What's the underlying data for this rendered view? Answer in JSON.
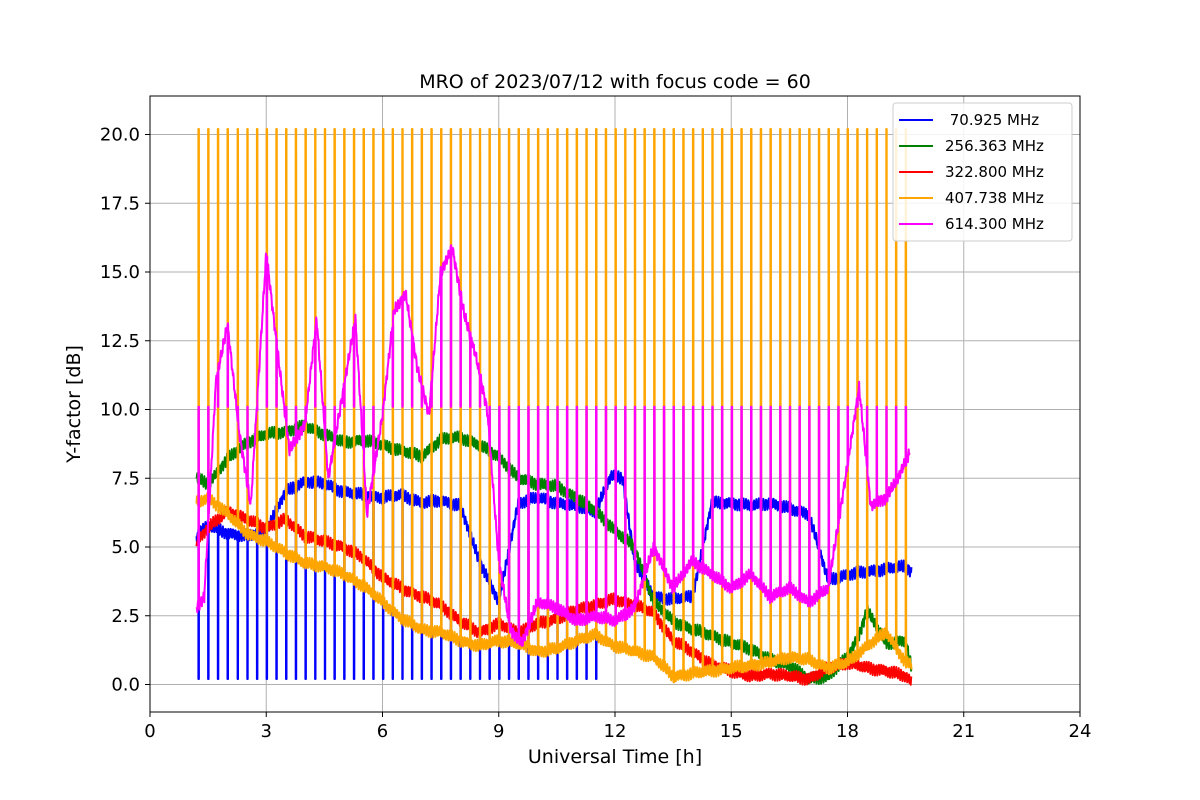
{
  "chart_data": {
    "type": "line",
    "title": "MRO of 2023/07/12 with focus code = 60",
    "xlabel": "Universal Time [h]",
    "ylabel": "Y-factor [dB]",
    "xlim": [
      0,
      24
    ],
    "ylim": [
      -1.0,
      21.4
    ],
    "xticks": [
      0,
      3,
      6,
      9,
      12,
      15,
      18,
      21,
      24
    ],
    "xtick_labels": [
      "0",
      "3",
      "6",
      "9",
      "12",
      "15",
      "18",
      "21",
      "24"
    ],
    "yticks": [
      0.0,
      2.5,
      5.0,
      7.5,
      10.0,
      12.5,
      15.0,
      17.5,
      20.0
    ],
    "ytick_labels": [
      "0.0",
      "2.5",
      "5.0",
      "7.5",
      "10.0",
      "12.5",
      "15.0",
      "17.5",
      "20.0"
    ],
    "grid": true,
    "legend_position": "top-right",
    "pulse_interval_h": 0.25,
    "series": [
      {
        "name": " 70.925 MHz",
        "color": "#0000ff",
        "pulse_value": 0.2,
        "pulse_range": [
          1.25,
          11.5
        ],
        "x": [
          1.2,
          1.5,
          2,
          2.5,
          3,
          3.5,
          4,
          4.5,
          5,
          5.5,
          6,
          6.5,
          7,
          7.5,
          8,
          8.5,
          9,
          9.5,
          10,
          10.5,
          11,
          11.5,
          11.9,
          12.2,
          12.5,
          13,
          13.5,
          14,
          14.5,
          15,
          15.5,
          16,
          16.5,
          17,
          17.5,
          18,
          18.5,
          19,
          19.5,
          19.65
        ],
        "values": [
          5.4,
          5.8,
          5.5,
          5.4,
          5.6,
          7.0,
          7.4,
          7.3,
          7.0,
          6.9,
          6.8,
          6.9,
          6.6,
          6.7,
          6.5,
          4.5,
          3.0,
          6.6,
          6.8,
          6.6,
          6.5,
          6.3,
          7.6,
          7.5,
          4.5,
          3.2,
          3.1,
          3.2,
          6.6,
          6.6,
          6.5,
          6.6,
          6.4,
          6.2,
          3.8,
          4.0,
          4.1,
          4.2,
          4.3,
          4.1
        ]
      },
      {
        "name": "256.363 MHz",
        "color": "#008000",
        "pulse_value": null,
        "pulse_range": null,
        "x": [
          1.2,
          1.5,
          2,
          2.5,
          3,
          3.5,
          4,
          4.5,
          5,
          5.5,
          6,
          6.5,
          7,
          7.5,
          8,
          8.5,
          9,
          9.5,
          10,
          10.5,
          11,
          11.5,
          12,
          12.5,
          13,
          13.5,
          14,
          14.5,
          15,
          15.5,
          16,
          16.5,
          17,
          17.5,
          18,
          18.3,
          18.5,
          19,
          19.5,
          19.65
        ],
        "values": [
          7.5,
          7.3,
          8.2,
          8.8,
          9.1,
          9.2,
          9.4,
          9.1,
          8.8,
          8.9,
          8.7,
          8.5,
          8.3,
          8.9,
          9.0,
          8.7,
          8.3,
          7.5,
          7.3,
          7.2,
          6.8,
          6.3,
          5.6,
          5.0,
          3.0,
          2.3,
          2.0,
          1.8,
          1.5,
          1.3,
          0.9,
          0.7,
          0.2,
          0.3,
          1.0,
          1.8,
          2.7,
          1.5,
          1.6,
          0.6
        ]
      },
      {
        "name": "322.800 MHz",
        "color": "#ff0000",
        "pulse_value": null,
        "pulse_range": null,
        "x": [
          1.2,
          1.5,
          2,
          2.5,
          3,
          3.5,
          4,
          4.5,
          5,
          5.5,
          6,
          6.5,
          7,
          7.5,
          8,
          8.5,
          9,
          9.5,
          10,
          10.5,
          11,
          11.5,
          12,
          12.5,
          13,
          13.5,
          14,
          14.5,
          15,
          15.5,
          16,
          16.5,
          17,
          17.5,
          18,
          18.5,
          19,
          19.5,
          19.65
        ],
        "values": [
          5.2,
          5.7,
          6.3,
          6.0,
          5.7,
          6.0,
          5.4,
          5.2,
          5.0,
          4.6,
          3.9,
          3.5,
          3.2,
          2.9,
          2.3,
          1.9,
          2.2,
          1.9,
          2.2,
          2.4,
          2.7,
          2.9,
          3.1,
          2.9,
          2.6,
          1.6,
          1.2,
          0.7,
          0.5,
          0.3,
          0.4,
          0.3,
          0.2,
          0.6,
          0.8,
          0.6,
          0.5,
          0.3,
          0.1
        ]
      },
      {
        "name": "407.738 MHz",
        "color": "#ffa500",
        "pulse_value": 20.2,
        "pulse_range": [
          1.25,
          19.5
        ],
        "x": [
          1.2,
          1.5,
          2,
          2.5,
          3,
          3.5,
          4,
          4.5,
          5,
          5.5,
          6,
          6.5,
          7,
          7.5,
          8,
          8.5,
          9,
          9.5,
          10,
          10.5,
          11,
          11.5,
          12,
          12.5,
          13,
          13.5,
          14,
          14.5,
          15,
          15.5,
          16,
          16.5,
          17,
          17.5,
          18,
          18.5,
          19,
          19.5,
          19.65
        ],
        "values": [
          6.6,
          6.8,
          6.2,
          5.5,
          5.2,
          4.8,
          4.4,
          4.3,
          4.0,
          3.6,
          3.0,
          2.4,
          2.0,
          1.9,
          1.6,
          1.4,
          1.6,
          1.5,
          1.2,
          1.3,
          1.6,
          1.8,
          1.4,
          1.2,
          1.0,
          0.3,
          0.4,
          0.5,
          0.6,
          0.7,
          0.8,
          1.0,
          0.9,
          0.6,
          0.8,
          1.4,
          1.9,
          0.8,
          0.7
        ]
      },
      {
        "name": "614.300 MHz",
        "color": "#ff00ff",
        "pulse_value": 10.1,
        "pulse_range": [
          1.25,
          19.5
        ],
        "x": [
          1.2,
          1.4,
          1.7,
          2.0,
          2.3,
          2.6,
          3.0,
          3.3,
          3.6,
          4.0,
          4.3,
          4.6,
          5.0,
          5.3,
          5.6,
          6.0,
          6.3,
          6.6,
          6.9,
          7.2,
          7.5,
          7.8,
          8.1,
          8.4,
          8.7,
          9.0,
          9.3,
          9.6,
          10.0,
          10.5,
          11.0,
          11.5,
          12.0,
          12.5,
          13.0,
          13.5,
          14.0,
          14.5,
          15.0,
          15.5,
          16.0,
          16.5,
          17.0,
          17.5,
          18.0,
          18.3,
          18.6,
          19.0,
          19.3,
          19.6
        ],
        "values": [
          2.8,
          3.2,
          11.0,
          13.1,
          9.2,
          6.5,
          15.7,
          12.0,
          8.5,
          9.5,
          13.3,
          7.5,
          10.8,
          13.3,
          6.2,
          9.8,
          13.6,
          14.2,
          11.5,
          9.8,
          15.0,
          15.9,
          13.5,
          12.0,
          10.0,
          4.5,
          2.0,
          1.5,
          3.0,
          2.8,
          2.3,
          2.5,
          2.3,
          2.8,
          5.0,
          3.5,
          4.5,
          4.0,
          3.5,
          4.0,
          3.2,
          3.5,
          3.0,
          3.5,
          8.0,
          10.8,
          6.5,
          6.8,
          7.5,
          8.4
        ]
      }
    ]
  }
}
